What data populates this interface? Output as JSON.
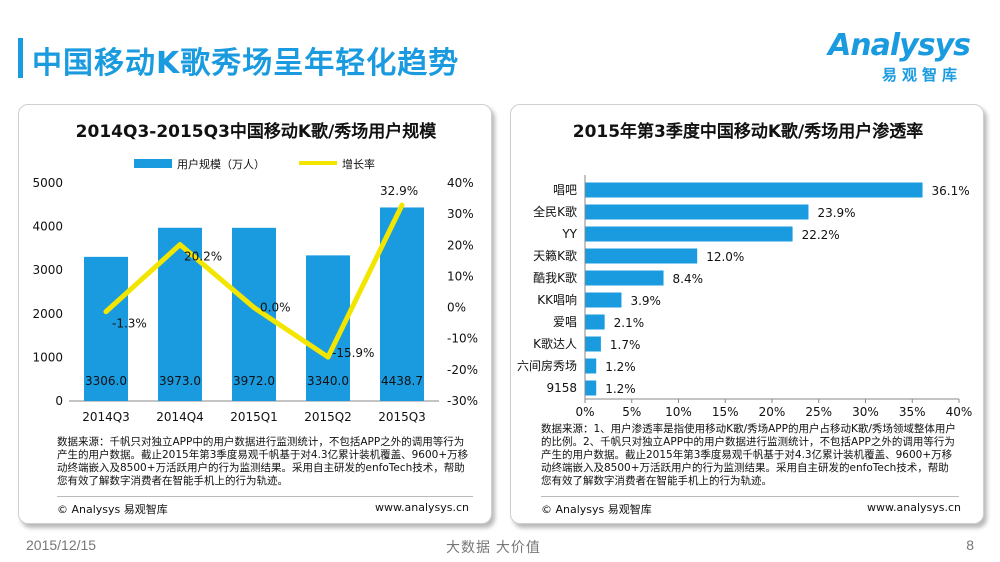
{
  "header": {
    "title": "中国移动K歌秀场呈年轻化趋势",
    "logo_en": "Analysys",
    "logo_cn": "易观智库"
  },
  "footer": {
    "date": "2015/12/15",
    "slogan": "大数据  大价值",
    "page": "8"
  },
  "colors": {
    "accent": "#1a9be0",
    "bar": "#1a9be0",
    "line": "#f2e600"
  },
  "left_panel": {
    "note": "数据来源：千帆只对独立APP中的用户数据进行监测统计，不包括APP之外的调用等行为产生的用户数据。截止2015年第3季度易观千帆基于对4.3亿累计装机覆盖、9600+万移动终端嵌入及8500+万活跃用户的行为监测结果。采用自主研发的enfoTech技术，帮助您有效了解数字消费者在智能手机上的行为轨迹。",
    "copyright": "© Analysys 易观智库",
    "url": "www.analysys.cn"
  },
  "right_panel": {
    "note": "数据来源：1、用户渗透率是指使用移动K歌/秀场APP的用户占移动K歌/秀场领域整体用户的比例。2、千帆只对独立APP中的用户数据进行监测统计，不包括APP之外的调用等行为产生的用户数据。截止2015年第3季度易观千帆基于对4.3亿累计装机覆盖、9600+万移动终端嵌入及8500+万活跃用户的行为监测结果。采用自主研发的enfoTech技术，帮助您有效了解数字消费者在智能手机上的行为轨迹。",
    "copyright": "© Analysys 易观智库",
    "url": "www.analysys.cn"
  },
  "chart_data": [
    {
      "type": "bar",
      "title": "2014Q3-2015Q3中国移动K歌/秀场用户规模",
      "categories": [
        "2014Q3",
        "2014Q4",
        "2015Q1",
        "2015Q2",
        "2015Q3"
      ],
      "series": [
        {
          "name": "用户规模（万人）",
          "type": "bar",
          "axis": "left",
          "values": [
            3306.0,
            3973.0,
            3972.0,
            3340.0,
            4438.7
          ],
          "labels": [
            "3306.0",
            "3973.0",
            "3972.0",
            "3340.0",
            "4438.7"
          ]
        },
        {
          "name": "增长率",
          "type": "line",
          "axis": "right",
          "values": [
            -1.3,
            20.2,
            0.0,
            -15.9,
            32.9
          ],
          "labels": [
            "-1.3%",
            "20.2%",
            "0.0%",
            "-15.9%",
            "32.9%"
          ]
        }
      ],
      "ylim": [
        0,
        5000
      ],
      "yticks": [
        0,
        1000,
        2000,
        3000,
        4000,
        5000
      ],
      "ytick_labels": [
        "0",
        "1000",
        "2000",
        "3000",
        "4000",
        "5000"
      ],
      "y2lim": [
        -30,
        40
      ],
      "y2ticks": [
        -30,
        -20,
        -10,
        0,
        10,
        20,
        30,
        40
      ],
      "y2tick_labels": [
        "-30%",
        "-20%",
        "-10%",
        "0%",
        "10%",
        "20%",
        "30%",
        "40%"
      ],
      "legend": "top"
    },
    {
      "type": "bar",
      "orientation": "horizontal",
      "title": "2015年第3季度中国移动K歌/秀场用户渗透率",
      "categories": [
        "唱吧",
        "全民K歌",
        "YY",
        "天籁K歌",
        "酷我K歌",
        "KK唱响",
        "爱唱",
        "K歌达人",
        "六间房秀场",
        "9158"
      ],
      "values": [
        36.1,
        23.9,
        22.2,
        12.0,
        8.4,
        3.9,
        2.1,
        1.7,
        1.2,
        1.2
      ],
      "labels": [
        "36.1%",
        "23.9%",
        "22.2%",
        "12.0%",
        "8.4%",
        "3.9%",
        "2.1%",
        "1.7%",
        "1.2%",
        "1.2%"
      ],
      "xlim": [
        0,
        40
      ],
      "xticks": [
        0,
        5,
        10,
        15,
        20,
        25,
        30,
        35,
        40
      ],
      "xtick_labels": [
        "0%",
        "5%",
        "10%",
        "15%",
        "20%",
        "25%",
        "30%",
        "35%",
        "40%"
      ]
    }
  ]
}
